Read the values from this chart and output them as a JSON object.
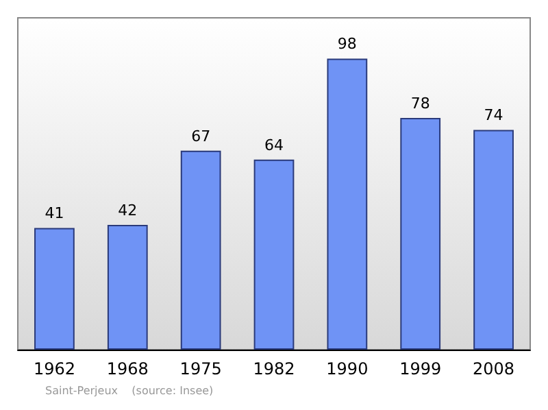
{
  "chart_data": {
    "type": "bar",
    "categories": [
      "1962",
      "1968",
      "1975",
      "1982",
      "1990",
      "1999",
      "2008"
    ],
    "values": [
      41,
      42,
      67,
      64,
      98,
      78,
      74
    ],
    "color": "#6f93f5",
    "data_labels": true,
    "annotations": [
      "Saint-Perjeux    (source: Insee)"
    ]
  }
}
